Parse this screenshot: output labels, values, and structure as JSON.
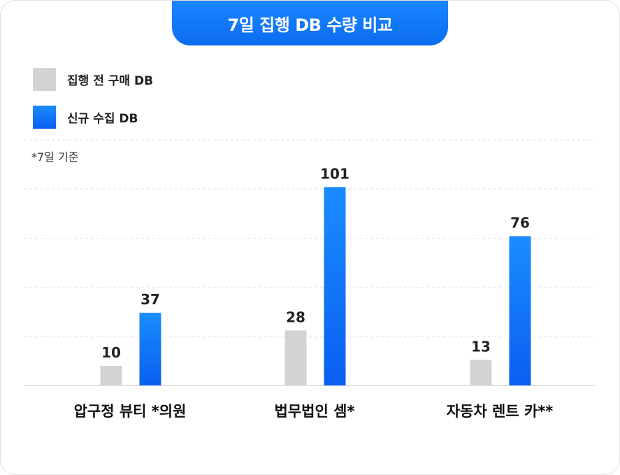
{
  "title": "7일 집행 DB 수량 비교",
  "note": "*7일 기준",
  "colors": {
    "before": "#d3d3d3",
    "new_top": "#1a8cff",
    "new_bottom": "#0a5ff0",
    "title_bg": "#0b6cf0"
  },
  "chart_data": {
    "type": "bar",
    "categories": [
      "압구정 뷰티 *의원",
      "법무법인 셈*",
      "자동차 렌트 카**"
    ],
    "series": [
      {
        "name": "집행 전 구매 DB",
        "values": [
          10,
          28,
          13
        ]
      },
      {
        "name": "신규 수집 DB",
        "values": [
          37,
          101,
          76
        ]
      }
    ],
    "ylim": [
      0,
      125
    ],
    "grid": true,
    "legend": "top-left"
  }
}
